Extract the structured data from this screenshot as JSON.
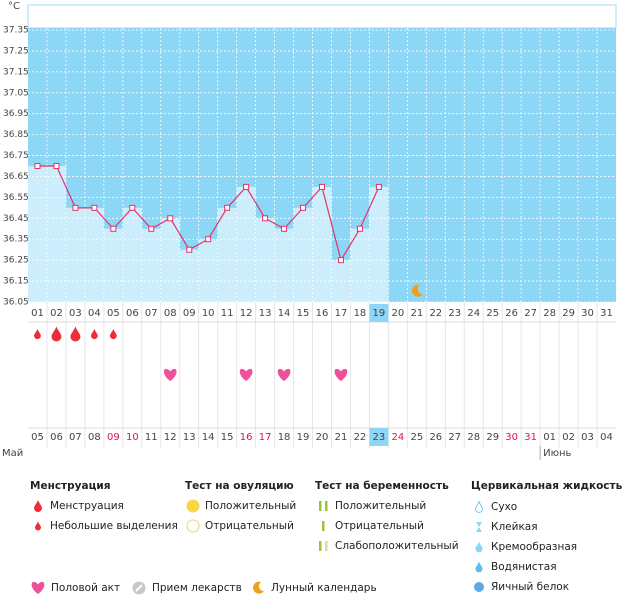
{
  "chart_data": {
    "type": "line",
    "y_label": "°C",
    "categories": [
      "01",
      "02",
      "03",
      "04",
      "05",
      "06",
      "07",
      "08",
      "09",
      "10",
      "11",
      "12",
      "13",
      "14",
      "15",
      "16",
      "17",
      "18",
      "19",
      "20",
      "21",
      "22",
      "23",
      "24",
      "25",
      "26",
      "27",
      "28",
      "29",
      "30",
      "31"
    ],
    "values": [
      36.7,
      36.7,
      36.5,
      36.5,
      36.4,
      36.5,
      36.4,
      36.45,
      36.3,
      36.35,
      36.5,
      36.6,
      36.45,
      36.4,
      36.5,
      36.6,
      36.25,
      36.4,
      36.6,
      null,
      null,
      null,
      null,
      null,
      null,
      null,
      null,
      null,
      null,
      null,
      null
    ],
    "ylim": [
      36.05,
      37.35
    ],
    "yticks": [
      36.05,
      36.15,
      36.25,
      36.35,
      36.45,
      36.55,
      36.65,
      36.75,
      36.85,
      36.95,
      37.05,
      37.15,
      37.25,
      37.35
    ],
    "color": "#e8306a",
    "dates": [
      {
        "label": "05",
        "weekend": false
      },
      {
        "label": "06",
        "weekend": false
      },
      {
        "label": "07",
        "weekend": false
      },
      {
        "label": "08",
        "weekend": false
      },
      {
        "label": "09",
        "weekend": true
      },
      {
        "label": "10",
        "weekend": true
      },
      {
        "label": "11",
        "weekend": false
      },
      {
        "label": "12",
        "weekend": false
      },
      {
        "label": "13",
        "weekend": false
      },
      {
        "label": "14",
        "weekend": false
      },
      {
        "label": "15",
        "weekend": false
      },
      {
        "label": "16",
        "weekend": true
      },
      {
        "label": "17",
        "weekend": true
      },
      {
        "label": "18",
        "weekend": false
      },
      {
        "label": "19",
        "weekend": false
      },
      {
        "label": "20",
        "weekend": false
      },
      {
        "label": "21",
        "weekend": false
      },
      {
        "label": "22",
        "weekend": false
      },
      {
        "label": "23",
        "weekend": true,
        "today": true
      },
      {
        "label": "24",
        "weekend": true
      },
      {
        "label": "25",
        "weekend": false
      },
      {
        "label": "26",
        "weekend": false
      },
      {
        "label": "27",
        "weekend": false
      },
      {
        "label": "28",
        "weekend": false
      },
      {
        "label": "29",
        "weekend": false
      },
      {
        "label": "30",
        "weekend": true
      },
      {
        "label": "31",
        "weekend": true
      },
      {
        "label": "01",
        "weekend": false
      },
      {
        "label": "02",
        "weekend": false
      },
      {
        "label": "03",
        "weekend": false
      },
      {
        "label": "04",
        "weekend": false
      }
    ],
    "months": [
      "Май",
      "Июнь"
    ],
    "menstruation": {
      "days": [
        1,
        2,
        3,
        4,
        5
      ],
      "heavy": [
        false,
        true,
        true,
        false,
        false
      ]
    },
    "intercourse_days": [
      8,
      12,
      14,
      17
    ],
    "moon_day": 21
  },
  "legend": [
    {
      "title": "Менструация",
      "items": [
        "Менструация",
        "Небольшие выделения"
      ]
    },
    {
      "title": "Тест на овуляцию",
      "items": [
        "Положительный",
        "Отрицательный"
      ]
    },
    {
      "title": "Тест на беременность",
      "items": [
        "Положительный",
        "Отрицательный",
        "Слабоположительный"
      ]
    },
    {
      "title": "Цервикальная жидкость",
      "items": [
        "Сухо",
        "Клейкая",
        "Кремообразная",
        "Водянистая",
        "Яичный белок"
      ]
    }
  ],
  "legend_bottom": [
    "Половой акт",
    "Прием лекарств",
    "Лунный календарь"
  ]
}
